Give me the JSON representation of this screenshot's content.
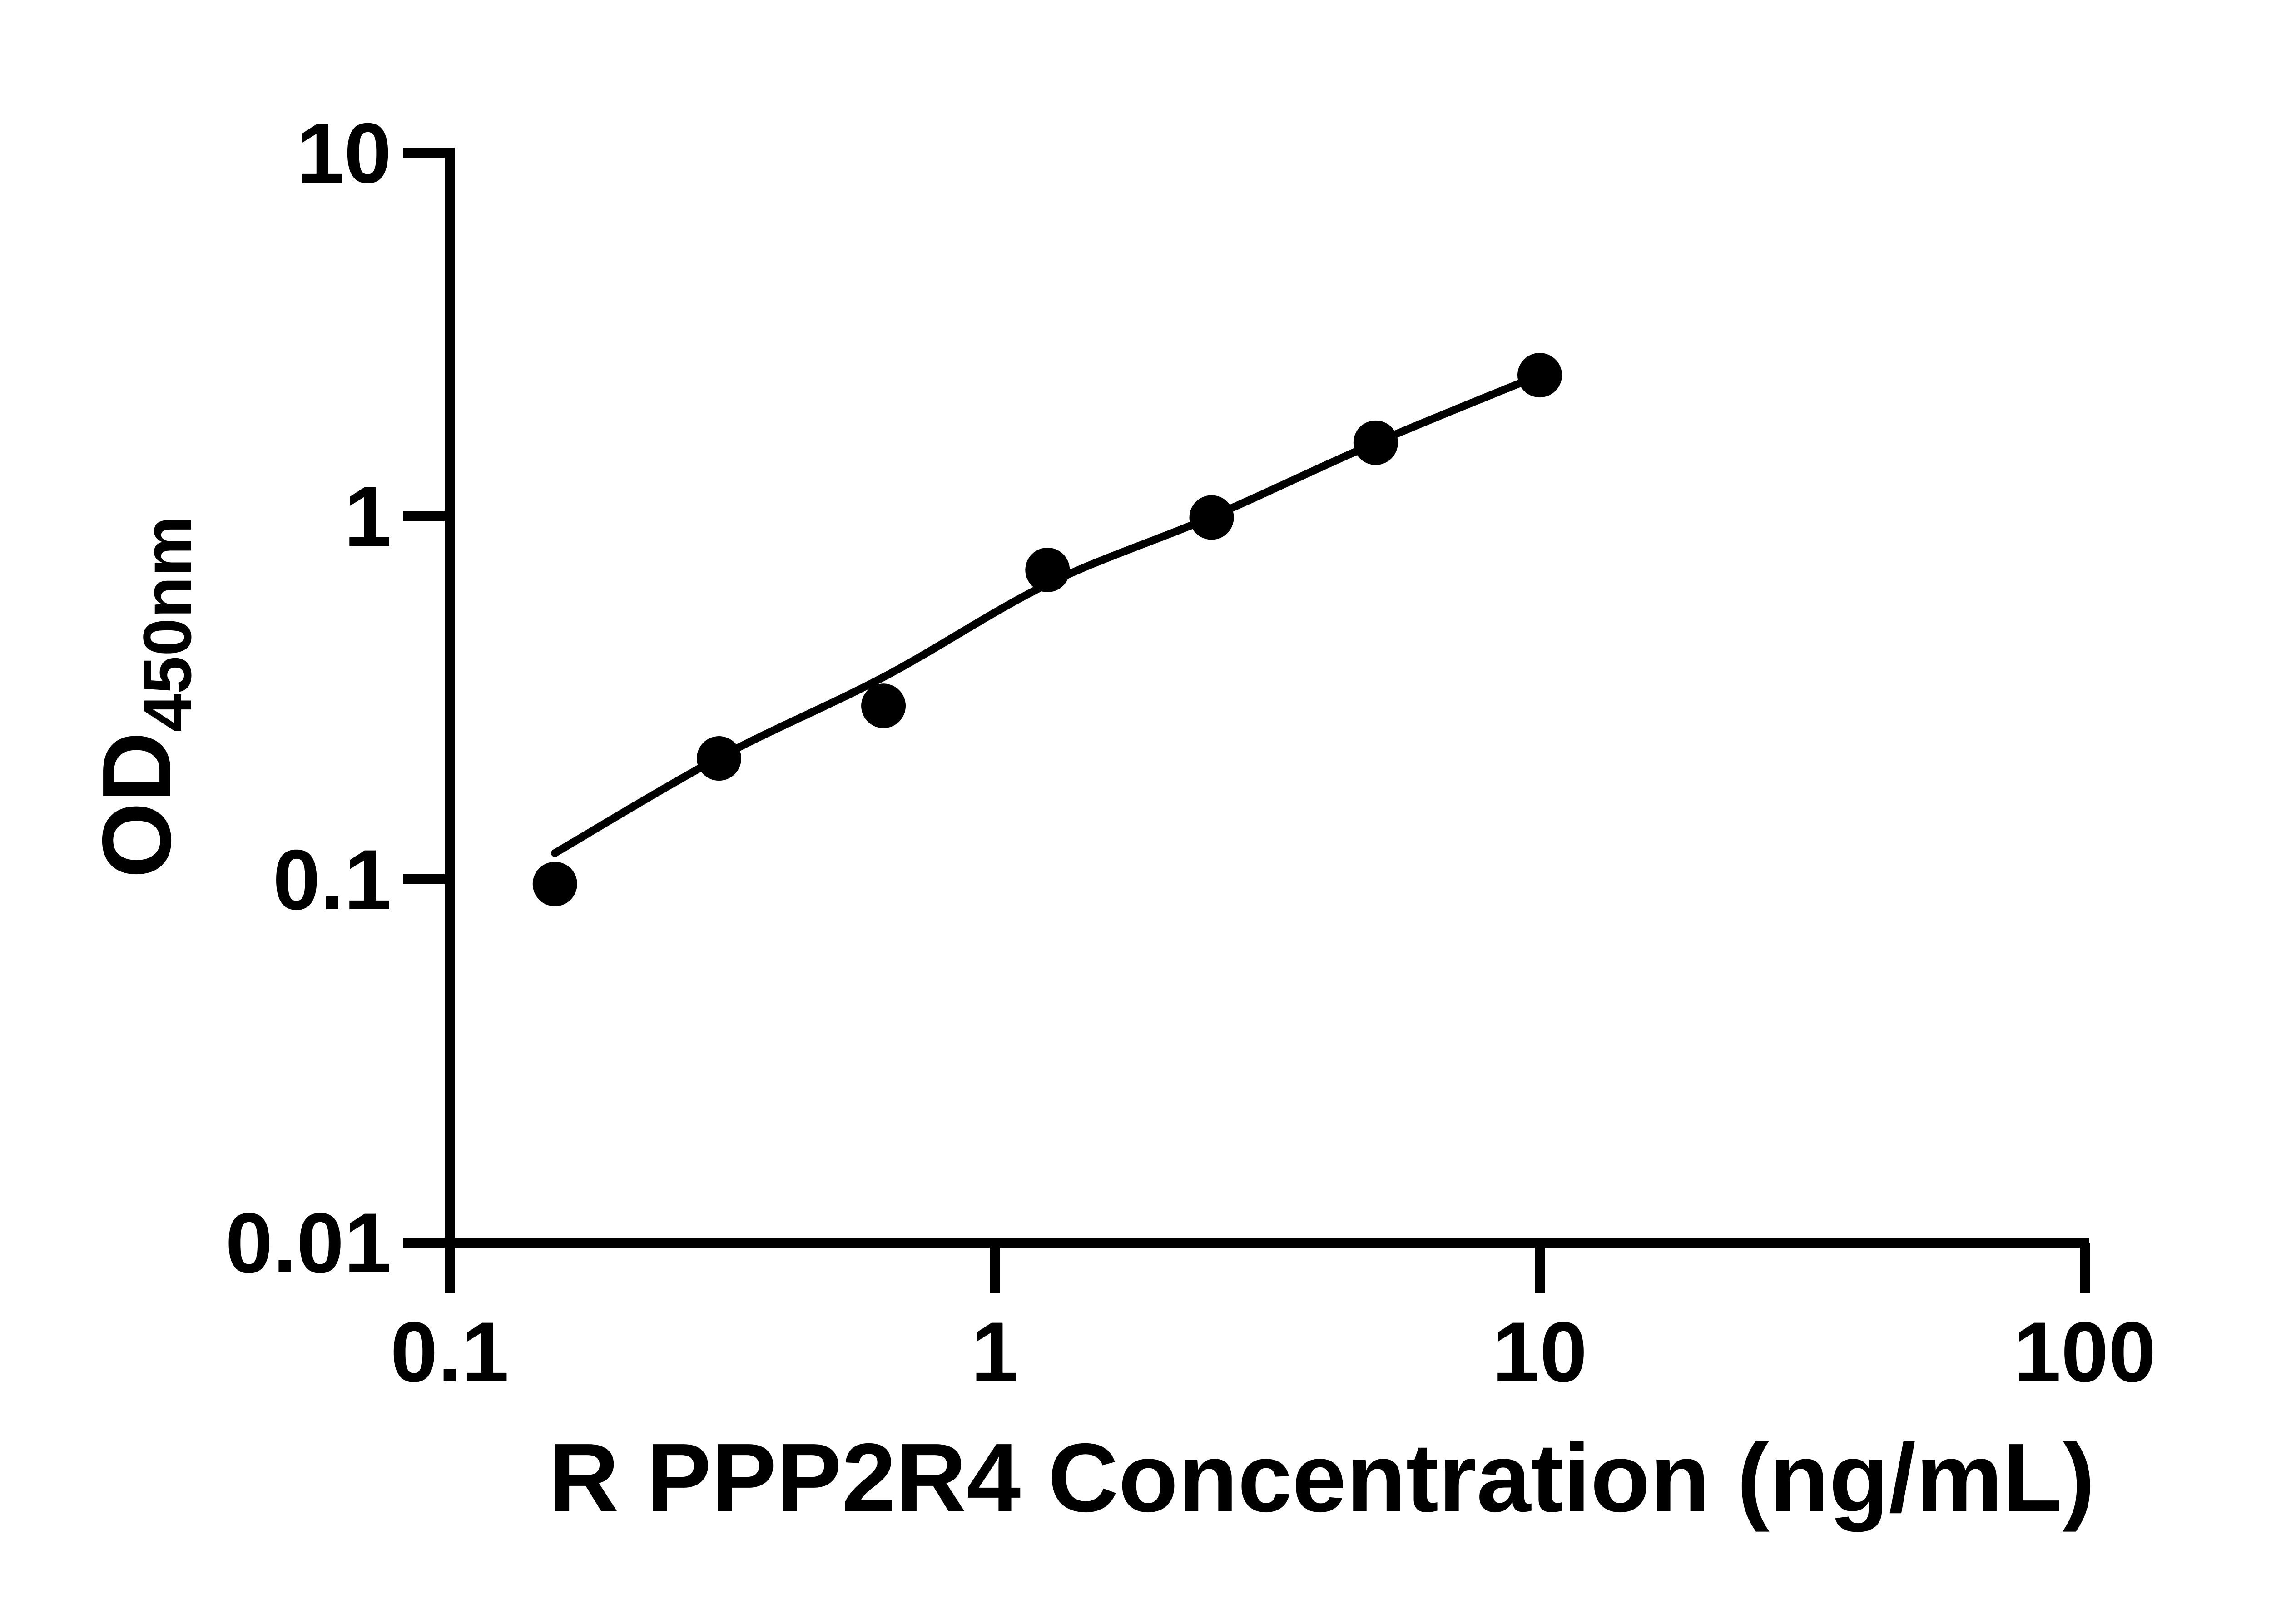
{
  "figure": {
    "background": "#ffffff",
    "ink_color": "#000000"
  },
  "chart_data": {
    "type": "scatter",
    "title": "",
    "xlabel": "R PPP2R4 Concentration (ng/mL)",
    "ylabel_main": "OD",
    "ylabel_sub": "450nm",
    "x_scale": "log",
    "y_scale": "log",
    "xlim": [
      0.1,
      100
    ],
    "ylim": [
      0.01,
      10
    ],
    "grid": false,
    "legend": "none",
    "x_ticks": [
      {
        "value": 0.1,
        "label": "0.1"
      },
      {
        "value": 1,
        "label": "1"
      },
      {
        "value": 10,
        "label": "10"
      },
      {
        "value": 100,
        "label": "100"
      }
    ],
    "y_ticks": [
      {
        "value": 10,
        "label": "10"
      },
      {
        "value": 1,
        "label": "1"
      },
      {
        "value": 0.1,
        "label": "0.1"
      },
      {
        "value": 0.01,
        "label": "0.01"
      }
    ],
    "series": [
      {
        "name": "standard-curve-points",
        "marker": "circle",
        "color": "#000000",
        "points": [
          {
            "x": 0.156,
            "y": 0.097
          },
          {
            "x": 0.312,
            "y": 0.215
          },
          {
            "x": 0.625,
            "y": 0.3
          },
          {
            "x": 1.25,
            "y": 0.71
          },
          {
            "x": 2.5,
            "y": 0.99
          },
          {
            "x": 5,
            "y": 1.59
          },
          {
            "x": 10,
            "y": 2.44
          }
        ]
      }
    ],
    "trend_line": {
      "name": "fitted-curve",
      "color": "#000000",
      "points": [
        {
          "x": 0.156,
          "y": 0.118
        },
        {
          "x": 0.312,
          "y": 0.216
        },
        {
          "x": 0.625,
          "y": 0.36
        },
        {
          "x": 1.25,
          "y": 0.649
        },
        {
          "x": 2.5,
          "y": 0.994
        },
        {
          "x": 5,
          "y": 1.59
        },
        {
          "x": 10,
          "y": 2.44
        }
      ]
    }
  }
}
